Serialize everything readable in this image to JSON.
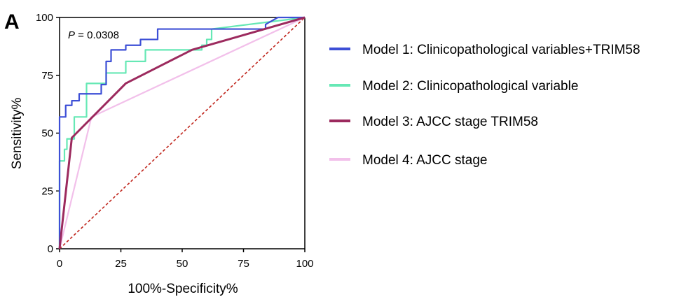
{
  "chart_data": {
    "type": "line",
    "panel_label": "A",
    "annotation": {
      "prefix": "P",
      "text": " = 0.0308"
    },
    "xlabel": "100%-Specificity%",
    "ylabel": "Sensitivity%",
    "xlim": [
      0,
      100
    ],
    "ylim": [
      0,
      100
    ],
    "xticks": [
      "0",
      "25",
      "50",
      "75",
      "100"
    ],
    "yticks": [
      "0",
      "25",
      "50",
      "75",
      "100"
    ],
    "grid": false,
    "legend_position": "right",
    "reference_line": {
      "x": [
        0,
        100
      ],
      "y": [
        0,
        100
      ],
      "color": "#c0251c"
    },
    "series": [
      {
        "name": "Model 1: Clinicopathological variables+TRIM58",
        "color": "#3d4fd6",
        "x": [
          0,
          0,
          2.5,
          2.5,
          5,
          5,
          8,
          8,
          17,
          17,
          19,
          19,
          21,
          21,
          23,
          23,
          27,
          27,
          33,
          33,
          40,
          40,
          84,
          84,
          89,
          100
        ],
        "y": [
          0,
          57,
          57,
          62,
          62,
          64,
          64,
          67,
          67,
          71,
          71,
          81,
          81,
          86,
          86,
          86,
          86,
          88,
          88,
          90.5,
          90.5,
          95,
          95,
          97,
          100,
          100
        ]
      },
      {
        "name": "Model 2: Clinicopathological variable",
        "color": "#66e8b5",
        "x": [
          0,
          0,
          2,
          2,
          3,
          3,
          6,
          6,
          11,
          11,
          16,
          16,
          19,
          19,
          24,
          24,
          27,
          27,
          35,
          35,
          58,
          58,
          60,
          60,
          62,
          62,
          100
        ],
        "y": [
          0,
          38,
          38,
          43,
          43,
          47.5,
          47.5,
          57,
          57,
          71.5,
          71.5,
          71.5,
          71.5,
          76,
          76,
          76,
          76,
          81,
          81,
          86,
          86,
          88,
          88,
          90.5,
          90.5,
          95,
          100
        ]
      },
      {
        "name": "Model 3: AJCC stage TRIM58",
        "color": "#9c2a5e",
        "x": [
          0,
          5,
          27,
          54,
          100
        ],
        "y": [
          0,
          48,
          71.5,
          86,
          100
        ]
      },
      {
        "name": "Model 4: AJCC stage",
        "color": "#f2c0ea",
        "x": [
          0,
          13,
          100
        ],
        "y": [
          0,
          57,
          100
        ]
      }
    ]
  }
}
